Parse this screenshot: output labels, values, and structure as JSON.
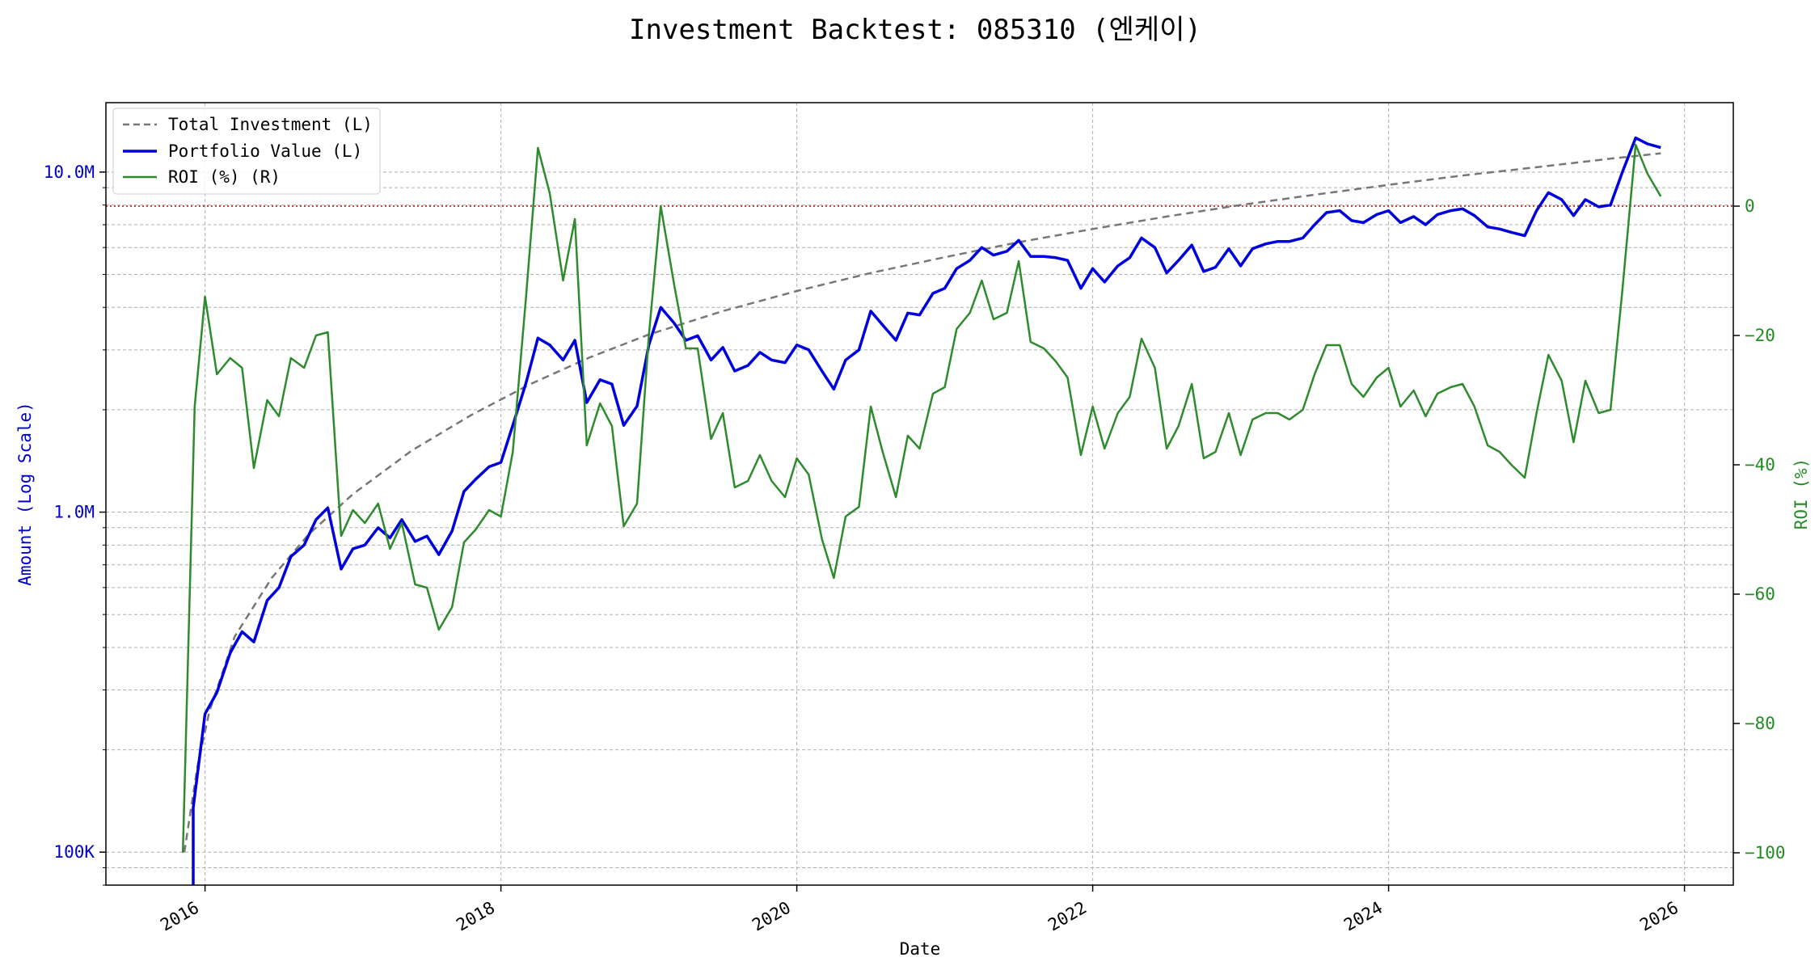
{
  "chart_data": {
    "type": "line",
    "title": "Investment Backtest: 085310 (엔케이)",
    "xlabel": "Date",
    "ylabel_left": "Amount (Log Scale)",
    "ylabel_right": "ROI (%)",
    "left_axis": {
      "scale": "log",
      "ylim": [
        80000,
        16000000
      ],
      "ticks": [
        {
          "value": 100000,
          "label": "100K"
        },
        {
          "value": 1000000,
          "label": "1.0M"
        },
        {
          "value": 10000000,
          "label": "10.0M"
        }
      ],
      "color": "#0000cc"
    },
    "right_axis": {
      "scale": "linear",
      "ylim": [
        -105,
        16
      ],
      "ticks": [
        {
          "value": 0,
          "label": "0"
        },
        {
          "value": -20,
          "label": "−20"
        },
        {
          "value": -40,
          "label": "−40"
        },
        {
          "value": -60,
          "label": "−60"
        },
        {
          "value": -80,
          "label": "−80"
        },
        {
          "value": -100,
          "label": "−100"
        }
      ],
      "color": "#228b22"
    },
    "x_axis": {
      "xlim": [
        2015.33,
        2026.33
      ],
      "ticks": [
        {
          "value": 2016,
          "label": "2016"
        },
        {
          "value": 2018,
          "label": "2018"
        },
        {
          "value": 2020,
          "label": "2020"
        },
        {
          "value": 2022,
          "label": "2022"
        },
        {
          "value": 2024,
          "label": "2024"
        },
        {
          "value": 2026,
          "label": "2026"
        }
      ]
    },
    "grid": true,
    "legend_position": "top-left",
    "reference_line": {
      "axis": "right",
      "value": 0,
      "color": "#cc0000",
      "style": "dotted"
    },
    "series": [
      {
        "name": "Total Investment (L)",
        "axis": "left",
        "color": "#777777",
        "style": "dashed",
        "x": [
          2015.86,
          2015.95,
          2016.03,
          2016.2,
          2016.45,
          2016.7,
          2017.0,
          2017.4,
          2017.8,
          2018.2,
          2018.6,
          2019.0,
          2019.5,
          2020.0,
          2020.5,
          2021.0,
          2021.5,
          2022.0,
          2022.5,
          2023.0,
          2023.5,
          2024.0,
          2024.5,
          2025.0,
          2025.5,
          2025.84
        ],
        "y": [
          100000,
          180000,
          260000,
          430000,
          640000,
          860000,
          1130000,
          1520000,
          1930000,
          2380000,
          2850000,
          3330000,
          3900000,
          4470000,
          5050000,
          5620000,
          6220000,
          6800000,
          7400000,
          8000000,
          8580000,
          9170000,
          9770000,
          10330000,
          10950000,
          11350000
        ]
      },
      {
        "name": "Portfolio Value (L)",
        "axis": "left",
        "color": "#0000dd",
        "style": "solid",
        "x": [
          2015.92,
          2015.92,
          2016.0,
          2016.08,
          2016.17,
          2016.25,
          2016.33,
          2016.42,
          2016.5,
          2016.58,
          2016.67,
          2016.75,
          2016.83,
          2016.92,
          2017.0,
          2017.08,
          2017.17,
          2017.25,
          2017.33,
          2017.42,
          2017.5,
          2017.58,
          2017.67,
          2017.75,
          2017.83,
          2017.92,
          2018.0,
          2018.08,
          2018.17,
          2018.25,
          2018.33,
          2018.42,
          2018.5,
          2018.58,
          2018.67,
          2018.75,
          2018.83,
          2018.92,
          2019.0,
          2019.08,
          2019.17,
          2019.25,
          2019.33,
          2019.42,
          2019.5,
          2019.58,
          2019.67,
          2019.75,
          2019.83,
          2019.92,
          2020.0,
          2020.08,
          2020.17,
          2020.25,
          2020.33,
          2020.42,
          2020.5,
          2020.58,
          2020.67,
          2020.75,
          2020.83,
          2020.92,
          2021.0,
          2021.08,
          2021.17,
          2021.25,
          2021.33,
          2021.42,
          2021.5,
          2021.58,
          2021.67,
          2021.75,
          2021.83,
          2021.92,
          2022.0,
          2022.08,
          2022.17,
          2022.25,
          2022.33,
          2022.42,
          2022.5,
          2022.58,
          2022.67,
          2022.75,
          2022.83,
          2022.92,
          2023.0,
          2023.08,
          2023.17,
          2023.25,
          2023.33,
          2023.42,
          2023.5,
          2023.58,
          2023.67,
          2023.75,
          2023.83,
          2023.92,
          2024.0,
          2024.08,
          2024.17,
          2024.25,
          2024.33,
          2024.42,
          2024.5,
          2024.58,
          2024.67,
          2024.75,
          2024.83,
          2024.92,
          2025.0,
          2025.08,
          2025.17,
          2025.25,
          2025.33,
          2025.42,
          2025.5,
          2025.58,
          2025.67,
          2025.75,
          2025.84
        ],
        "y": [
          80000,
          135000,
          255000,
          295000,
          385000,
          445000,
          415000,
          550000,
          600000,
          740000,
          800000,
          950000,
          1030000,
          680000,
          780000,
          800000,
          900000,
          840000,
          950000,
          820000,
          850000,
          750000,
          880000,
          1150000,
          1250000,
          1360000,
          1400000,
          1800000,
          2400000,
          3250000,
          3100000,
          2800000,
          3200000,
          2100000,
          2450000,
          2380000,
          1800000,
          2050000,
          3100000,
          4000000,
          3600000,
          3200000,
          3300000,
          2800000,
          3050000,
          2600000,
          2700000,
          2950000,
          2800000,
          2750000,
          3100000,
          3000000,
          2600000,
          2300000,
          2800000,
          3000000,
          3900000,
          3550000,
          3200000,
          3850000,
          3800000,
          4400000,
          4550000,
          5200000,
          5500000,
          6000000,
          5700000,
          5850000,
          6300000,
          5650000,
          5650000,
          5600000,
          5500000,
          4550000,
          5200000,
          4750000,
          5300000,
          5600000,
          6400000,
          6000000,
          5050000,
          5500000,
          6100000,
          5100000,
          5250000,
          5950000,
          5300000,
          5950000,
          6150000,
          6250000,
          6250000,
          6400000,
          7000000,
          7600000,
          7700000,
          7200000,
          7100000,
          7500000,
          7700000,
          7100000,
          7400000,
          7000000,
          7500000,
          7700000,
          7800000,
          7450000,
          6900000,
          6800000,
          6650000,
          6500000,
          7700000,
          8700000,
          8300000,
          7450000,
          8300000,
          7900000,
          8000000,
          10000000,
          12600000,
          12100000,
          11800000
        ]
      },
      {
        "name": "ROI (%) (R)",
        "axis": "right",
        "color": "#2e8b2e",
        "style": "solid",
        "x": [
          2015.85,
          2015.93,
          2016.0,
          2016.08,
          2016.17,
          2016.25,
          2016.33,
          2016.42,
          2016.5,
          2016.58,
          2016.67,
          2016.75,
          2016.83,
          2016.92,
          2017.0,
          2017.08,
          2017.17,
          2017.25,
          2017.33,
          2017.42,
          2017.5,
          2017.58,
          2017.67,
          2017.75,
          2017.83,
          2017.92,
          2018.0,
          2018.08,
          2018.17,
          2018.25,
          2018.33,
          2018.42,
          2018.5,
          2018.58,
          2018.67,
          2018.75,
          2018.83,
          2018.92,
          2019.0,
          2019.08,
          2019.17,
          2019.25,
          2019.33,
          2019.42,
          2019.5,
          2019.58,
          2019.67,
          2019.75,
          2019.83,
          2019.92,
          2020.0,
          2020.08,
          2020.17,
          2020.25,
          2020.33,
          2020.42,
          2020.5,
          2020.58,
          2020.67,
          2020.75,
          2020.83,
          2020.92,
          2021.0,
          2021.08,
          2021.17,
          2021.25,
          2021.33,
          2021.42,
          2021.5,
          2021.58,
          2021.67,
          2021.75,
          2021.83,
          2021.92,
          2022.0,
          2022.08,
          2022.17,
          2022.25,
          2022.33,
          2022.42,
          2022.5,
          2022.58,
          2022.67,
          2022.75,
          2022.83,
          2022.92,
          2023.0,
          2023.08,
          2023.17,
          2023.25,
          2023.33,
          2023.42,
          2023.5,
          2023.58,
          2023.67,
          2023.75,
          2023.83,
          2023.92,
          2024.0,
          2024.08,
          2024.17,
          2024.25,
          2024.33,
          2024.42,
          2024.5,
          2024.58,
          2024.67,
          2024.75,
          2024.83,
          2024.92,
          2025.0,
          2025.08,
          2025.17,
          2025.25,
          2025.33,
          2025.42,
          2025.5,
          2025.58,
          2025.67,
          2025.75,
          2025.84
        ],
        "y": [
          -100,
          -31,
          -14,
          -26,
          -23.5,
          -25,
          -40.5,
          -30,
          -32.5,
          -23.5,
          -25,
          -20,
          -19.5,
          -51,
          -47,
          -49,
          -46,
          -53,
          -49,
          -58.5,
          -59,
          -65.5,
          -62,
          -52,
          -50,
          -47,
          -48,
          -38,
          -14,
          9,
          2,
          -11.5,
          -2,
          -37,
          -30.5,
          -34,
          -49.5,
          -46,
          -20,
          0,
          -12,
          -22,
          -22,
          -36,
          -32,
          -43.5,
          -42.5,
          -38.5,
          -42.5,
          -45,
          -39,
          -41.5,
          -51.5,
          -57.5,
          -48,
          -46.5,
          -31,
          -38,
          -45,
          -35.5,
          -37.5,
          -29,
          -28,
          -19,
          -16.5,
          -11.5,
          -17.5,
          -16.5,
          -8.5,
          -21,
          -22,
          -24,
          -26.5,
          -38.5,
          -31,
          -37.5,
          -32,
          -29.5,
          -20.5,
          -25,
          -37.5,
          -34,
          -27.5,
          -39,
          -38,
          -32,
          -38.5,
          -33,
          -32,
          -32,
          -33,
          -31.5,
          -26,
          -21.5,
          -21.5,
          -27.5,
          -29.5,
          -26.5,
          -25,
          -31,
          -28.5,
          -32.5,
          -29,
          -28,
          -27.5,
          -31,
          -37,
          -38,
          -40,
          -42,
          -32,
          -23,
          -27,
          -36.5,
          -27,
          -32,
          -31.5,
          -13,
          9.5,
          5,
          1.5
        ]
      }
    ]
  }
}
